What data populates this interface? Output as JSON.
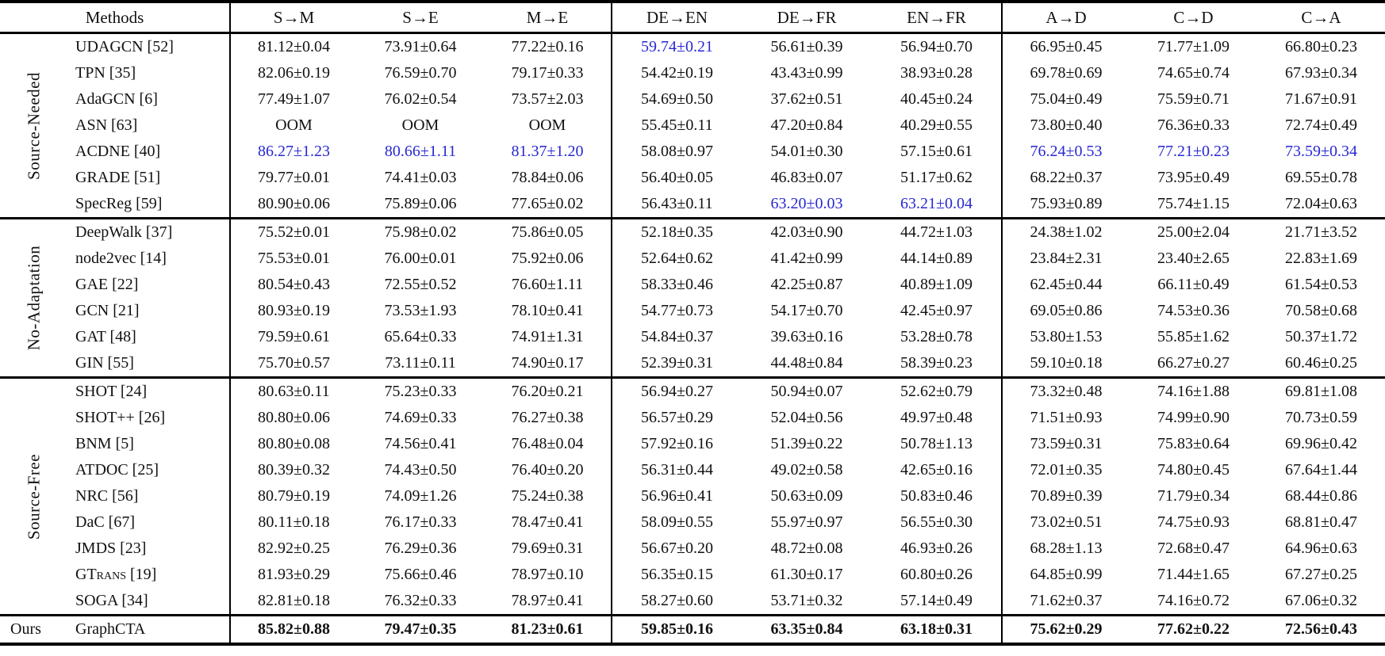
{
  "page": {
    "background_color": "#ffffff",
    "text_color": "#111111",
    "highlight_blue": "#2828d2"
  },
  "table": {
    "header": {
      "methods_label": "Methods",
      "columns": [
        "S→M",
        "S→E",
        "M→E",
        "DE→EN",
        "DE→FR",
        "EN→FR",
        "A→D",
        "C→D",
        "C→A"
      ]
    },
    "groups": [
      {
        "label": "Source-Needed",
        "label_orientation": "vertical",
        "rows": [
          {
            "method": "UDAGCN [52]",
            "values": [
              "81.12±0.04",
              "73.91±0.64",
              "77.22±0.16",
              "59.74±0.21",
              "56.61±0.39",
              "56.94±0.70",
              "66.95±0.45",
              "71.77±1.09",
              "66.80±0.23"
            ],
            "blue_value_indexes": [
              3
            ]
          },
          {
            "method": "TPN [35]",
            "values": [
              "82.06±0.19",
              "76.59±0.70",
              "79.17±0.33",
              "54.42±0.19",
              "43.43±0.99",
              "38.93±0.28",
              "69.78±0.69",
              "74.65±0.74",
              "67.93±0.34"
            ],
            "blue_value_indexes": []
          },
          {
            "method": "AdaGCN [6]",
            "values": [
              "77.49±1.07",
              "76.02±0.54",
              "73.57±2.03",
              "54.69±0.50",
              "37.62±0.51",
              "40.45±0.24",
              "75.04±0.49",
              "75.59±0.71",
              "71.67±0.91"
            ],
            "blue_value_indexes": []
          },
          {
            "method": "ASN [63]",
            "values": [
              "OOM",
              "OOM",
              "OOM",
              "55.45±0.11",
              "47.20±0.84",
              "40.29±0.55",
              "73.80±0.40",
              "76.36±0.33",
              "72.74±0.49"
            ],
            "blue_value_indexes": []
          },
          {
            "method": "ACDNE [40]",
            "values": [
              "86.27±1.23",
              "80.66±1.11",
              "81.37±1.20",
              "58.08±0.97",
              "54.01±0.30",
              "57.15±0.61",
              "76.24±0.53",
              "77.21±0.23",
              "73.59±0.34"
            ],
            "blue_value_indexes": [
              0,
              1,
              2,
              6,
              7,
              8
            ]
          },
          {
            "method": "GRADE [51]",
            "values": [
              "79.77±0.01",
              "74.41±0.03",
              "78.84±0.06",
              "56.40±0.05",
              "46.83±0.07",
              "51.17±0.62",
              "68.22±0.37",
              "73.95±0.49",
              "69.55±0.78"
            ],
            "blue_value_indexes": []
          },
          {
            "method": "SpecReg [59]",
            "values": [
              "80.90±0.06",
              "75.89±0.06",
              "77.65±0.02",
              "56.43±0.11",
              "63.20±0.03",
              "63.21±0.04",
              "75.93±0.89",
              "75.74±1.15",
              "72.04±0.63"
            ],
            "blue_value_indexes": [
              4,
              5
            ]
          }
        ]
      },
      {
        "label": "No-Adaptation",
        "label_orientation": "vertical",
        "rows": [
          {
            "method": "DeepWalk [37]",
            "values": [
              "75.52±0.01",
              "75.98±0.02",
              "75.86±0.05",
              "52.18±0.35",
              "42.03±0.90",
              "44.72±1.03",
              "24.38±1.02",
              "25.00±2.04",
              "21.71±3.52"
            ],
            "blue_value_indexes": []
          },
          {
            "method": "node2vec [14]",
            "values": [
              "75.53±0.01",
              "76.00±0.01",
              "75.92±0.06",
              "52.64±0.62",
              "41.42±0.99",
              "44.14±0.89",
              "23.84±2.31",
              "23.40±2.65",
              "22.83±1.69"
            ],
            "blue_value_indexes": []
          },
          {
            "method": "GAE [22]",
            "values": [
              "80.54±0.43",
              "72.55±0.52",
              "76.60±1.11",
              "58.33±0.46",
              "42.25±0.87",
              "40.89±1.09",
              "62.45±0.44",
              "66.11±0.49",
              "61.54±0.53"
            ],
            "blue_value_indexes": []
          },
          {
            "method": "GCN [21]",
            "values": [
              "80.93±0.19",
              "73.53±1.93",
              "78.10±0.41",
              "54.77±0.73",
              "54.17±0.70",
              "42.45±0.97",
              "69.05±0.86",
              "74.53±0.36",
              "70.58±0.68"
            ],
            "blue_value_indexes": []
          },
          {
            "method": "GAT [48]",
            "values": [
              "79.59±0.61",
              "65.64±0.33",
              "74.91±1.31",
              "54.84±0.37",
              "39.63±0.16",
              "53.28±0.78",
              "53.80±1.53",
              "55.85±1.62",
              "50.37±1.72"
            ],
            "blue_value_indexes": []
          },
          {
            "method": "GIN [55]",
            "values": [
              "75.70±0.57",
              "73.11±0.11",
              "74.90±0.17",
              "52.39±0.31",
              "44.48±0.84",
              "58.39±0.23",
              "59.10±0.18",
              "66.27±0.27",
              "60.46±0.25"
            ],
            "blue_value_indexes": []
          }
        ]
      },
      {
        "label": "Source-Free",
        "label_orientation": "vertical",
        "rows": [
          {
            "method": "SHOT [24]",
            "values": [
              "80.63±0.11",
              "75.23±0.33",
              "76.20±0.21",
              "56.94±0.27",
              "50.94±0.07",
              "52.62±0.79",
              "73.32±0.48",
              "74.16±1.88",
              "69.81±1.08"
            ],
            "blue_value_indexes": []
          },
          {
            "method": "SHOT++ [26]",
            "values": [
              "80.80±0.06",
              "74.69±0.33",
              "76.27±0.38",
              "56.57±0.29",
              "52.04±0.56",
              "49.97±0.48",
              "71.51±0.93",
              "74.99±0.90",
              "70.73±0.59"
            ],
            "blue_value_indexes": []
          },
          {
            "method": "BNM [5]",
            "values": [
              "80.80±0.08",
              "74.56±0.41",
              "76.48±0.04",
              "57.92±0.16",
              "51.39±0.22",
              "50.78±1.13",
              "73.59±0.31",
              "75.83±0.64",
              "69.96±0.42"
            ],
            "blue_value_indexes": []
          },
          {
            "method": "ATDOC [25]",
            "values": [
              "80.39±0.32",
              "74.43±0.50",
              "76.40±0.20",
              "56.31±0.44",
              "49.02±0.58",
              "42.65±0.16",
              "72.01±0.35",
              "74.80±0.45",
              "67.64±1.44"
            ],
            "blue_value_indexes": []
          },
          {
            "method": "NRC [56]",
            "values": [
              "80.79±0.19",
              "74.09±1.26",
              "75.24±0.38",
              "56.96±0.41",
              "50.63±0.09",
              "50.83±0.46",
              "70.89±0.39",
              "71.79±0.34",
              "68.44±0.86"
            ],
            "blue_value_indexes": []
          },
          {
            "method": "DaC [67]",
            "values": [
              "80.11±0.18",
              "76.17±0.33",
              "78.47±0.41",
              "58.09±0.55",
              "55.97±0.97",
              "56.55±0.30",
              "73.02±0.51",
              "74.75±0.93",
              "68.81±0.47"
            ],
            "blue_value_indexes": []
          },
          {
            "method": "JMDS [23]",
            "values": [
              "82.92±0.25",
              "76.29±0.36",
              "79.69±0.31",
              "56.67±0.20",
              "48.72±0.08",
              "46.93±0.26",
              "68.28±1.13",
              "72.68±0.47",
              "64.96±0.63"
            ],
            "blue_value_indexes": []
          },
          {
            "method": "GTrans [19]",
            "small_caps": true,
            "values": [
              "81.93±0.29",
              "75.66±0.46",
              "78.97±0.10",
              "56.35±0.15",
              "61.30±0.17",
              "60.80±0.26",
              "64.85±0.99",
              "71.44±1.65",
              "67.27±0.25"
            ],
            "blue_value_indexes": []
          },
          {
            "method": "SOGA [34]",
            "values": [
              "82.81±0.18",
              "76.32±0.33",
              "78.97±0.41",
              "58.27±0.60",
              "53.71±0.32",
              "57.14±0.49",
              "71.62±0.37",
              "74.16±0.72",
              "67.06±0.32"
            ],
            "blue_value_indexes": []
          }
        ]
      },
      {
        "label": "Ours",
        "label_orientation": "horizontal",
        "rows": [
          {
            "method": "GraphCTA",
            "bold": true,
            "values": [
              "85.82±0.88",
              "79.47±0.35",
              "81.23±0.61",
              "59.85±0.16",
              "63.35±0.84",
              "63.18±0.31",
              "75.62±0.29",
              "77.62±0.22",
              "72.56±0.43"
            ],
            "blue_value_indexes": []
          }
        ]
      }
    ]
  }
}
